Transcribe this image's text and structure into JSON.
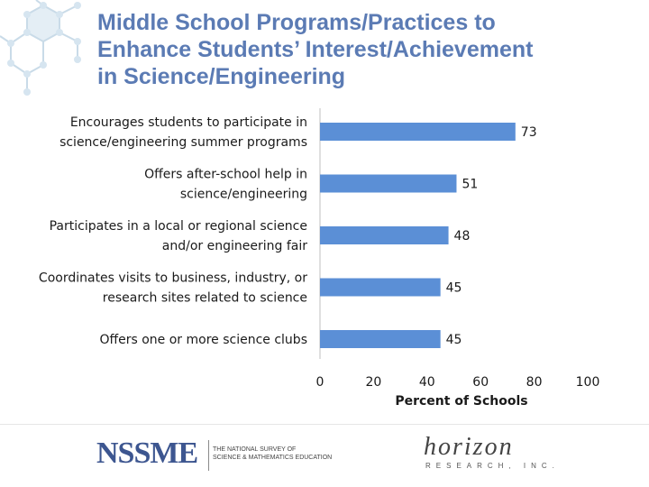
{
  "slide": {
    "title_lines": [
      "Middle School Programs/Practices to",
      "Enhance Students’ Interest/Achievement",
      "in Science/Engineering"
    ]
  },
  "chart_data": {
    "type": "bar",
    "orientation": "horizontal",
    "categories": [
      [
        "Encourages students to participate in",
        "science/engineering summer programs"
      ],
      [
        "Offers after-school help in",
        "science/engineering"
      ],
      [
        "Participates in a local or regional science",
        "and/or engineering fair"
      ],
      [
        "Coordinates visits to business, industry, or",
        "research sites related to science"
      ],
      [
        "Offers one or more science clubs"
      ]
    ],
    "values": [
      73,
      51,
      48,
      45,
      45
    ],
    "xlabel": "Percent of Schools",
    "xlim": [
      0,
      100
    ],
    "xticks": [
      0,
      20,
      40,
      60,
      80,
      100
    ],
    "bar_color": "#5b8fd6",
    "grid": false,
    "legend": "none"
  },
  "footer": {
    "left_logo_text": "NSSME",
    "left_logo_subtitle": [
      "THE NATIONAL SURVEY OF",
      "SCIENCE & MATHEMATICS EDUCATION"
    ],
    "right_logo_text": "horizon",
    "right_logo_subtitle": "RESEARCH, INC."
  },
  "colors": {
    "title": "#5b7bb4",
    "bar": "#5b8fd6"
  }
}
